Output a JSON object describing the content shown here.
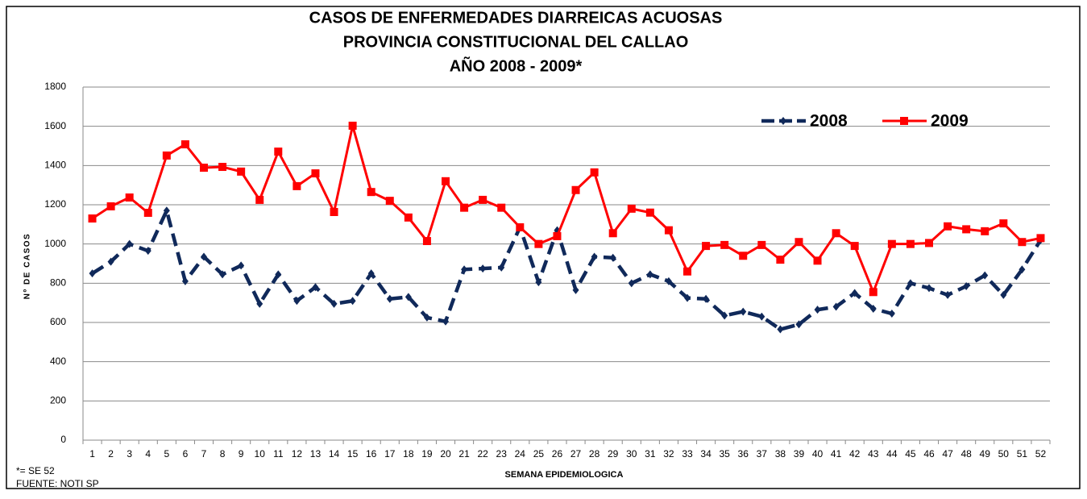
{
  "chart_data": {
    "type": "line",
    "title": [
      "CASOS DE ENFERMEDADES  DIARREICAS  ACUOSAS",
      "PROVINCIA  CONSTITUCIONAL  DEL  CALLAO",
      "AÑO 2008  - 2009*"
    ],
    "y_label": "Nº DE CASOS",
    "x_label": "SEMANA EPIDEMIOLOGICA",
    "footnotes": [
      "*= SE 52",
      "FUENTE: NOTI SP"
    ],
    "categories": [
      "1",
      "2",
      "3",
      "4",
      "5",
      "6",
      "7",
      "8",
      "9",
      "10",
      "11",
      "12",
      "13",
      "14",
      "15",
      "16",
      "17",
      "18",
      "19",
      "20",
      "21",
      "22",
      "23",
      "24",
      "25",
      "26",
      "27",
      "28",
      "29",
      "30",
      "31",
      "32",
      "33",
      "34",
      "35",
      "36",
      "37",
      "38",
      "39",
      "40",
      "41",
      "42",
      "43",
      "44",
      "45",
      "46",
      "47",
      "48",
      "49",
      "50",
      "51",
      "52"
    ],
    "series": [
      {
        "name": "2008",
        "color": "#10295a",
        "dashed": true,
        "marker": "diamond",
        "values": [
          850,
          910,
          1000,
          965,
          1170,
          810,
          935,
          845,
          890,
          695,
          845,
          710,
          780,
          695,
          710,
          850,
          720,
          730,
          625,
          605,
          870,
          875,
          880,
          1085,
          805,
          1070,
          765,
          935,
          930,
          800,
          845,
          810,
          725,
          720,
          635,
          655,
          630,
          565,
          590,
          665,
          680,
          750,
          670,
          645,
          800,
          775,
          740,
          785,
          840,
          740,
          870,
          1020
        ]
      },
      {
        "name": "2009",
        "color": "#ff0000",
        "dashed": false,
        "marker": "square",
        "values": [
          1130,
          1192,
          1237,
          1159,
          1451,
          1508,
          1389,
          1393,
          1369,
          1225,
          1471,
          1295,
          1360,
          1163,
          1603,
          1265,
          1220,
          1135,
          1015,
          1320,
          1185,
          1225,
          1185,
          1085,
          1000,
          1040,
          1275,
          1365,
          1055,
          1180,
          1160,
          1070,
          860,
          990,
          995,
          940,
          995,
          920,
          1010,
          915,
          1055,
          990,
          755,
          1000,
          1000,
          1005,
          1090,
          1075,
          1065,
          1105,
          1010,
          1030
        ]
      }
    ],
    "ylim": [
      0,
      1800
    ],
    "yticks": [
      0,
      200,
      400,
      600,
      800,
      1000,
      1200,
      1400,
      1600,
      1800
    ],
    "grid": true,
    "legend": "top-right"
  }
}
